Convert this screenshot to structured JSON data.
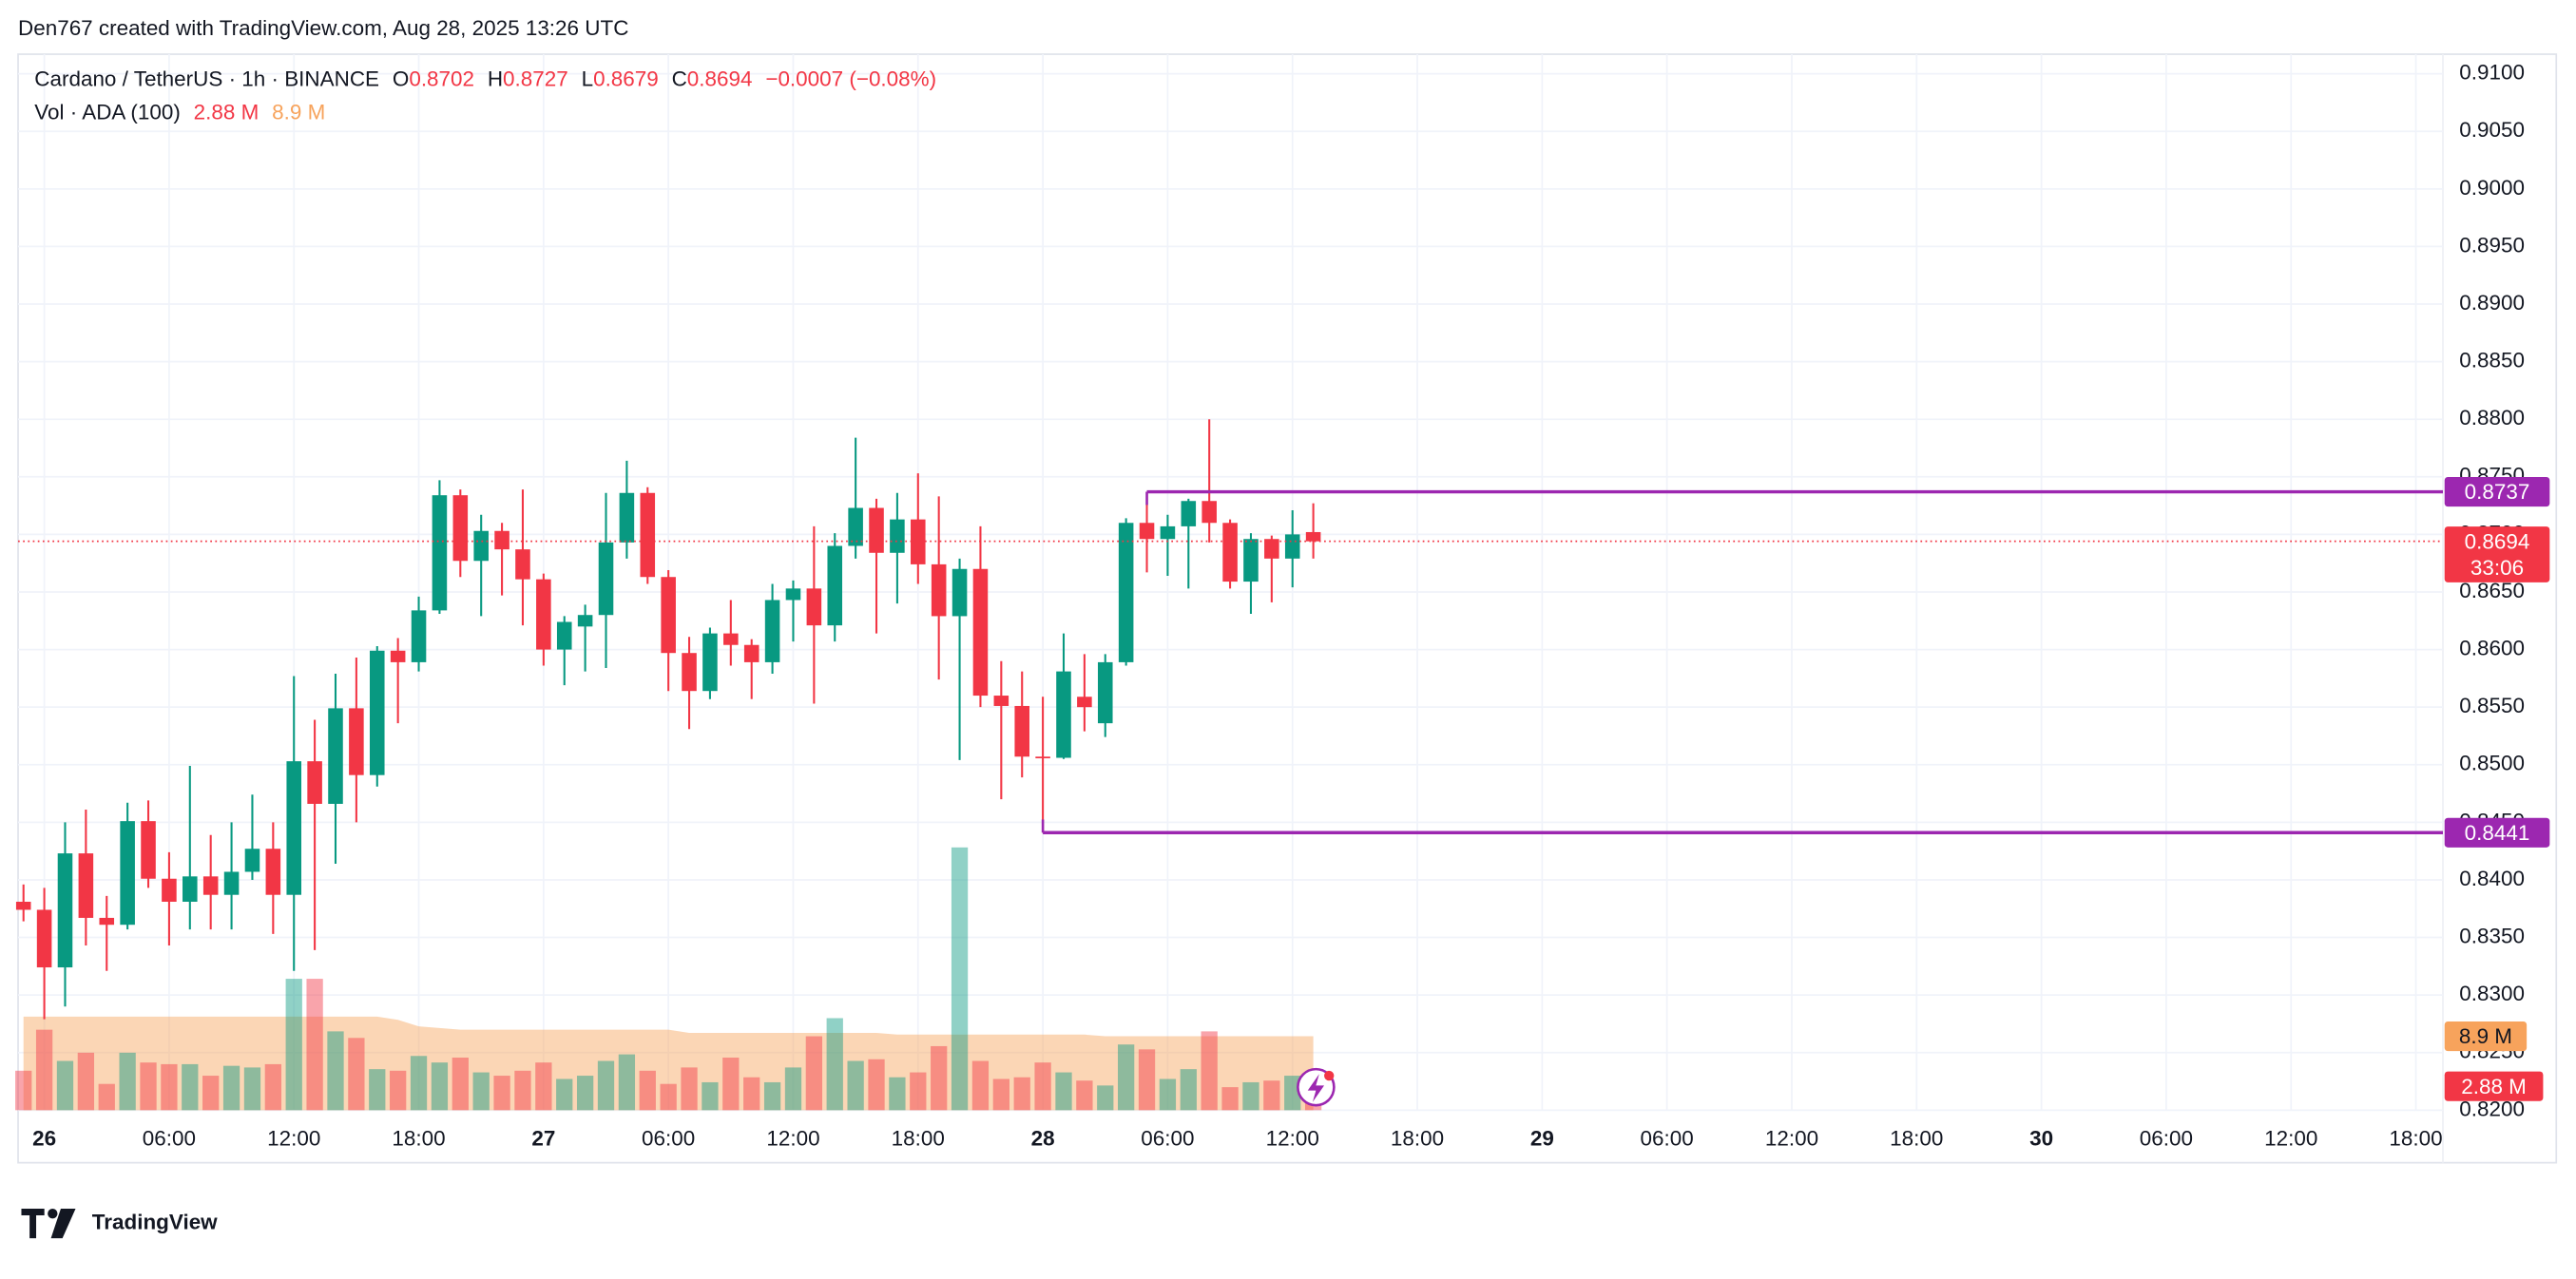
{
  "header": "Den767 created with TradingView.com, Aug 28, 2025 13:26 UTC",
  "logo": "TradingView",
  "chart_data": {
    "type": "candlestick",
    "title": "Cardano / TetherUS · 1h · BINANCE",
    "ohlc_letters": [
      "O",
      "H",
      "L",
      "C"
    ],
    "change_label": "−0.0007 (−0.08%)",
    "x": [
      -1,
      0,
      1,
      2,
      3,
      4,
      5,
      6,
      7,
      8,
      9,
      10,
      11,
      12,
      13,
      14,
      15,
      16,
      17,
      18,
      19,
      20,
      21,
      22,
      23,
      24,
      25,
      26,
      27,
      28,
      29,
      30,
      31,
      32,
      33,
      34,
      35,
      36,
      37,
      38,
      39,
      40,
      41,
      42,
      43,
      44,
      45,
      46,
      47,
      48,
      49,
      50,
      51,
      52,
      53,
      54,
      55,
      56,
      57,
      58,
      59,
      60,
      61
    ],
    "open": [
      0.8381,
      0.8374,
      0.8324,
      0.8423,
      0.8367,
      0.8361,
      0.8451,
      0.8401,
      0.8381,
      0.8403,
      0.8387,
      0.8407,
      0.8427,
      0.8387,
      0.8503,
      0.8466,
      0.8549,
      0.8491,
      0.8599,
      0.8589,
      0.8634,
      0.8734,
      0.8677,
      0.8703,
      0.8687,
      0.8661,
      0.86,
      0.862,
      0.863,
      0.8693,
      0.8736,
      0.8663,
      0.8597,
      0.8564,
      0.8614,
      0.8604,
      0.8589,
      0.8643,
      0.8653,
      0.8621,
      0.869,
      0.8723,
      0.8684,
      0.8713,
      0.8674,
      0.8629,
      0.867,
      0.856,
      0.8551,
      0.8507,
      0.8506,
      0.8559,
      0.8536,
      0.8589,
      0.871,
      0.8696,
      0.8707,
      0.8729,
      0.871,
      0.8659,
      0.8696,
      0.8679,
      0.8702
    ],
    "high": [
      0.8396,
      0.8393,
      0.845,
      0.8461,
      0.8386,
      0.8467,
      0.8469,
      0.8424,
      0.8499,
      0.8439,
      0.845,
      0.8474,
      0.845,
      0.8577,
      0.8539,
      0.8579,
      0.8593,
      0.8603,
      0.861,
      0.8646,
      0.8747,
      0.8739,
      0.8717,
      0.871,
      0.8739,
      0.8666,
      0.8629,
      0.8639,
      0.8736,
      0.8764,
      0.8741,
      0.8669,
      0.8611,
      0.8619,
      0.8643,
      0.8609,
      0.8657,
      0.866,
      0.8707,
      0.8701,
      0.8784,
      0.8731,
      0.8736,
      0.8753,
      0.8733,
      0.8679,
      0.8707,
      0.859,
      0.8581,
      0.8559,
      0.8614,
      0.8596,
      0.8596,
      0.8714,
      0.8737,
      0.8717,
      0.8731,
      0.88,
      0.8713,
      0.8701,
      0.8699,
      0.8721,
      0.8727
    ],
    "low": [
      0.8364,
      0.8279,
      0.829,
      0.8343,
      0.8321,
      0.8357,
      0.8393,
      0.8343,
      0.8357,
      0.8357,
      0.8357,
      0.84,
      0.8353,
      0.8321,
      0.8339,
      0.8414,
      0.845,
      0.8481,
      0.8536,
      0.8581,
      0.8631,
      0.8663,
      0.8629,
      0.8647,
      0.8621,
      0.8586,
      0.8569,
      0.8581,
      0.8584,
      0.8679,
      0.8657,
      0.8564,
      0.8531,
      0.8557,
      0.8586,
      0.8557,
      0.8579,
      0.8607,
      0.8553,
      0.8607,
      0.8679,
      0.8614,
      0.864,
      0.8657,
      0.8574,
      0.8504,
      0.855,
      0.847,
      0.8489,
      0.8441,
      0.8505,
      0.8529,
      0.8524,
      0.8586,
      0.8667,
      0.8664,
      0.8653,
      0.8693,
      0.8653,
      0.8631,
      0.8641,
      0.8654,
      0.8679
    ],
    "close": [
      0.8374,
      0.8324,
      0.8423,
      0.8367,
      0.8361,
      0.8451,
      0.8401,
      0.8381,
      0.8403,
      0.8387,
      0.8407,
      0.8427,
      0.8387,
      0.8503,
      0.8466,
      0.8549,
      0.8491,
      0.8599,
      0.8589,
      0.8634,
      0.8734,
      0.8677,
      0.8703,
      0.8687,
      0.8661,
      0.86,
      0.8624,
      0.863,
      0.8693,
      0.8736,
      0.8663,
      0.8597,
      0.8564,
      0.8614,
      0.8604,
      0.8589,
      0.8643,
      0.8653,
      0.8621,
      0.869,
      0.8723,
      0.8684,
      0.8713,
      0.8674,
      0.8629,
      0.867,
      0.856,
      0.8551,
      0.8507,
      0.8506,
      0.8581,
      0.855,
      0.8589,
      0.871,
      0.8696,
      0.8707,
      0.8729,
      0.871,
      0.8659,
      0.8696,
      0.8679,
      0.87,
      0.8694
    ],
    "up_color": "#089981",
    "down_color": "#f23645",
    "xlim": [
      -1.26,
      115.3
    ],
    "xticks": [
      {
        "value": 0,
        "label": "26"
      },
      {
        "value": 6,
        "label": "06:00"
      },
      {
        "value": 12,
        "label": "12:00"
      },
      {
        "value": 18,
        "label": "18:00"
      },
      {
        "value": 24,
        "label": "27"
      },
      {
        "value": 30,
        "label": "06:00"
      },
      {
        "value": 36,
        "label": "12:00"
      },
      {
        "value": 42,
        "label": "18:00"
      },
      {
        "value": 48,
        "label": "28"
      },
      {
        "value": 54,
        "label": "06:00"
      },
      {
        "value": 60,
        "label": "12:00"
      },
      {
        "value": 66,
        "label": "18:00"
      },
      {
        "value": 72,
        "label": "29"
      },
      {
        "value": 78,
        "label": "06:00"
      },
      {
        "value": 84,
        "label": "12:00"
      },
      {
        "value": 90,
        "label": "18:00"
      },
      {
        "value": 96,
        "label": "30"
      },
      {
        "value": 102,
        "label": "06:00"
      },
      {
        "value": 108,
        "label": "12:00"
      },
      {
        "value": 114,
        "label": "18:00"
      }
    ],
    "ylim": [
      0.82,
      0.9117
    ],
    "yticks": [
      {
        "value": 0.82,
        "label": "0.8200"
      },
      {
        "value": 0.825,
        "label": "0.8250"
      },
      {
        "value": 0.83,
        "label": "0.8300"
      },
      {
        "value": 0.835,
        "label": "0.8350"
      },
      {
        "value": 0.84,
        "label": "0.8400"
      },
      {
        "value": 0.845,
        "label": "0.8450"
      },
      {
        "value": 0.85,
        "label": "0.8500"
      },
      {
        "value": 0.855,
        "label": "0.8550"
      },
      {
        "value": 0.86,
        "label": "0.8600"
      },
      {
        "value": 0.865,
        "label": "0.8650"
      },
      {
        "value": 0.87,
        "label": "0.8700"
      },
      {
        "value": 0.875,
        "label": "0.8750"
      },
      {
        "value": 0.88,
        "label": "0.8800"
      },
      {
        "value": 0.885,
        "label": "0.8850"
      },
      {
        "value": 0.89,
        "label": "0.8900"
      },
      {
        "value": 0.895,
        "label": "0.8950"
      },
      {
        "value": 0.9,
        "label": "0.9000"
      },
      {
        "value": 0.905,
        "label": "0.9050"
      },
      {
        "value": 0.91,
        "label": "0.9100"
      }
    ],
    "grid": true,
    "volume": {
      "name": "Vol · ADA (100)",
      "values": [
        4.75,
        9.69,
        5.93,
        6.92,
        3.16,
        6.92,
        5.74,
        5.54,
        5.54,
        4.15,
        5.34,
        5.14,
        5.54,
        15.82,
        15.82,
        9.49,
        8.7,
        4.94,
        4.75,
        6.53,
        5.74,
        6.33,
        4.55,
        4.15,
        4.75,
        5.74,
        3.76,
        4.15,
        5.93,
        6.72,
        4.75,
        3.16,
        5.14,
        3.36,
        6.33,
        3.96,
        3.36,
        5.14,
        8.9,
        11.08,
        5.93,
        6.13,
        3.96,
        4.55,
        7.71,
        31.64,
        5.93,
        3.76,
        3.96,
        5.74,
        4.55,
        3.56,
        2.97,
        7.91,
        7.32,
        3.76,
        4.94,
        9.49,
        2.77,
        3.36,
        3.56,
        4.15,
        2.88
      ],
      "ma": [
        11.27,
        11.27,
        11.27,
        11.27,
        11.27,
        11.27,
        11.27,
        11.27,
        11.27,
        11.27,
        11.27,
        11.27,
        11.27,
        11.27,
        11.27,
        11.27,
        11.27,
        11.27,
        10.88,
        10.09,
        9.89,
        9.69,
        9.69,
        9.69,
        9.69,
        9.69,
        9.69,
        9.69,
        9.69,
        9.69,
        9.69,
        9.69,
        9.3,
        9.3,
        9.3,
        9.3,
        9.3,
        9.3,
        9.3,
        9.3,
        9.3,
        9.3,
        9.1,
        9.1,
        9.1,
        9.1,
        9.1,
        9.1,
        9.1,
        9.1,
        9.1,
        9.1,
        8.9,
        8.9,
        8.9,
        8.9,
        8.9,
        8.9,
        8.9,
        8.9,
        8.9,
        8.9,
        8.9
      ],
      "vlim": [
        0,
        60
      ],
      "last_label": "2.88 M",
      "ma_label": "8.9 M",
      "ma_color": "#f7a35c"
    },
    "levels": [
      {
        "value": 0.8737,
        "start": 53,
        "color": "#9c27b0"
      },
      {
        "value": 0.8441,
        "start": 48,
        "color": "#9c27b0"
      }
    ],
    "countdown": "33:06"
  }
}
